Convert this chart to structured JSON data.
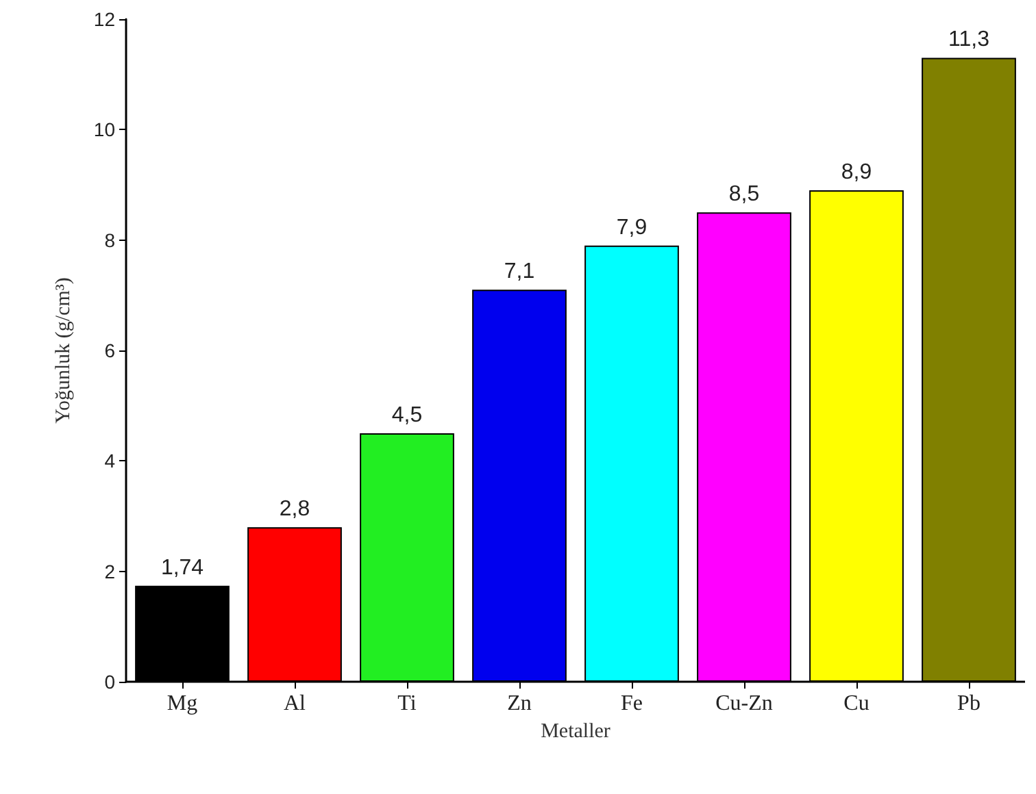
{
  "chart_data": {
    "type": "bar",
    "xlabel": "Metaller",
    "ylabel": "Yoğunluk (g/cm³)",
    "categories": [
      "Mg",
      "Al",
      "Ti",
      "Zn",
      "Fe",
      "Cu-Zn",
      "Cu",
      "Pb"
    ],
    "values": [
      1.74,
      2.8,
      4.5,
      7.1,
      7.9,
      8.5,
      8.9,
      11.3
    ],
    "colors": [
      "#000000",
      "#ff0000",
      "#22ee22",
      "#0000ee",
      "#00ffff",
      "#ff00ff",
      "#ffff00",
      "#808000"
    ],
    "value_labels": [
      "1,74",
      "2,8",
      "4,5",
      "7,1",
      "7,9",
      "8,5",
      "8,9",
      "11,3"
    ],
    "ylim": [
      0,
      12
    ],
    "yticks": [
      0,
      2,
      4,
      6,
      8,
      10,
      12
    ],
    "grid": false
  }
}
